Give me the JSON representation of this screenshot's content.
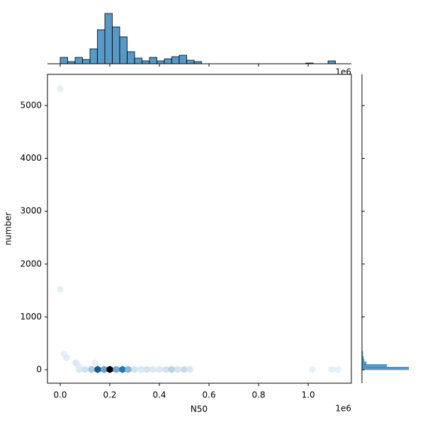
{
  "chart_data": {
    "type": "hexbin-joint",
    "x_label": "N50",
    "y_label": "number",
    "x_offset_label": "1e6",
    "xlim": [
      -0.0514,
      1.174
    ],
    "ylim": [
      -255,
      5590
    ],
    "xticks": [
      {
        "value": 0,
        "label": "0.0"
      },
      0.2,
      0.4,
      0.6,
      0.8,
      {
        "value": 1,
        "label": "1.0"
      }
    ],
    "yticks": [
      0,
      1000,
      2000,
      3000,
      4000,
      5000
    ],
    "color": "#1f77b4",
    "hexbins": {
      "x": [
        0.077,
        0.1,
        0.126,
        0.151,
        0.177,
        0.2,
        0.226,
        0.251,
        0.274,
        0.3,
        0.326,
        0.349,
        0.374,
        0.4,
        0.426,
        0.449,
        0.474,
        0.5,
        0.523,
        1.017,
        1.094,
        1.12,
        0,
        0,
        0.014,
        0.026,
        0.063,
        0.14,
        0.075
      ],
      "y": [
        5,
        5,
        5,
        5,
        5,
        5,
        5,
        5,
        5,
        5,
        5,
        5,
        5,
        5,
        5,
        5,
        5,
        5,
        5,
        5,
        5,
        5,
        5320,
        1520,
        300,
        230,
        130,
        130,
        70
      ],
      "counts": [
        3,
        4,
        10,
        35,
        20,
        50,
        18,
        30,
        15,
        4,
        3,
        4,
        3,
        3,
        4,
        8,
        4,
        6,
        3,
        1,
        1,
        1,
        1,
        1,
        1,
        2,
        3,
        1,
        2
      ]
    },
    "x_hist": {
      "bins": [
        0,
        0.03,
        0.06,
        0.09,
        0.12,
        0.15,
        0.18,
        0.21,
        0.24,
        0.27,
        0.3,
        0.33,
        0.36,
        0.39,
        0.42,
        0.45,
        0.48,
        0.51,
        0.54,
        0.57,
        0.6,
        0.63,
        0.66,
        0.69,
        0.72,
        0.75,
        0.78,
        0.81,
        0.84,
        0.87,
        0.9,
        0.93,
        0.96,
        0.99,
        1.02,
        1.05,
        1.08,
        1.11,
        1.14
      ],
      "counts": [
        9,
        3,
        9,
        6,
        21,
        48,
        71,
        52,
        38,
        17,
        8,
        4,
        9,
        4,
        7,
        10,
        12,
        5,
        3,
        0,
        0,
        0,
        0,
        0,
        0,
        0,
        0,
        0,
        0,
        0,
        0,
        0,
        0,
        1,
        0,
        0,
        4,
        0
      ],
      "ylim": [
        0,
        80
      ]
    },
    "y_hist": {
      "bins": [
        0,
        50,
        100,
        150,
        200,
        250,
        300,
        350
      ],
      "counts": [
        66,
        35,
        6,
        3,
        2,
        1,
        1
      ],
      "xlim": [
        0,
        67
      ]
    }
  }
}
